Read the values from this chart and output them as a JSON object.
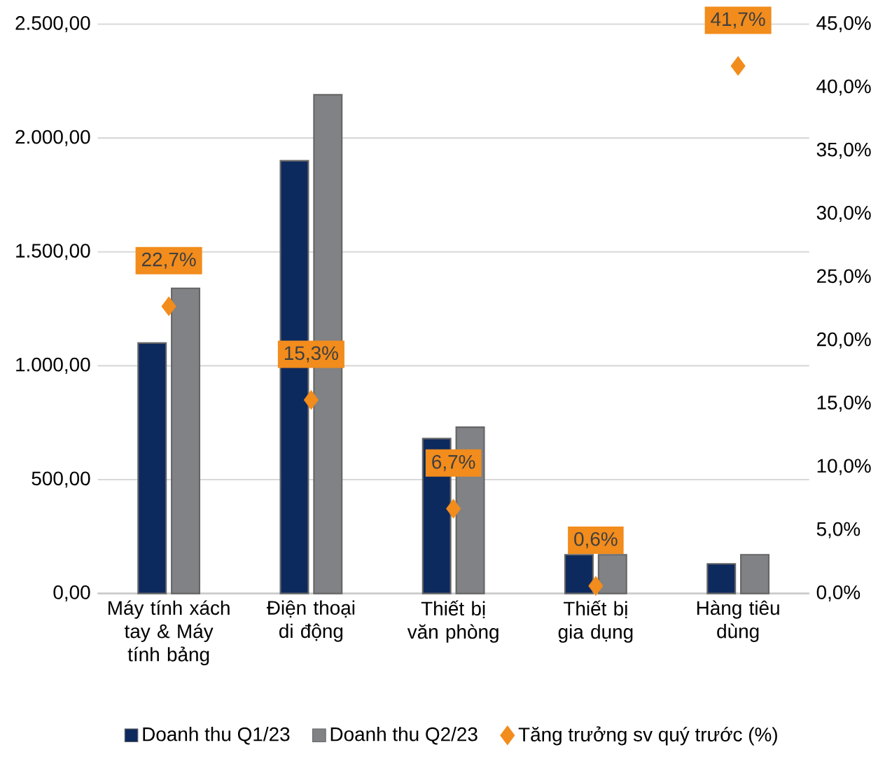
{
  "chart_data": {
    "type": "bar",
    "categories": [
      "Máy tính xách tay & Máy tính bảng",
      "Điện thoại di động",
      "Thiết bị văn phòng",
      "Thiết bị gia dụng",
      "Hàng tiêu dùng"
    ],
    "series": [
      {
        "name": "Doanh thu Q1/23",
        "color": "#0d2a5e",
        "values": [
          1100,
          1900,
          680,
          170,
          130
        ]
      },
      {
        "name": "Doanh thu Q2/23",
        "color": "#808285",
        "values": [
          1340,
          2190,
          730,
          170,
          170
        ]
      },
      {
        "name": "Tăng trưởng sv quý trước (%)",
        "type": "scatter",
        "axis": "y2",
        "marker": "diamond",
        "color": "#f28c1c",
        "values": [
          22.7,
          15.3,
          6.7,
          0.6,
          41.7
        ],
        "value_labels": [
          "22,7%",
          "15,3%",
          "6,7%",
          "0,6%",
          "41,7%"
        ]
      }
    ],
    "ylim": [
      0,
      2500
    ],
    "yticks": [
      {
        "value": 0,
        "label": "0,00"
      },
      {
        "value": 500,
        "label": "500,00"
      },
      {
        "value": 1000,
        "label": "1.000,00"
      },
      {
        "value": 1500,
        "label": "1.500,00"
      },
      {
        "value": 2000,
        "label": "2.000,00"
      },
      {
        "value": 2500,
        "label": "2.500,00"
      }
    ],
    "y2lim": [
      0,
      45
    ],
    "y2ticks": [
      {
        "value": 0,
        "label": "0,0%"
      },
      {
        "value": 5,
        "label": "5,0%"
      },
      {
        "value": 10,
        "label": "10,0%"
      },
      {
        "value": 15,
        "label": "15,0%"
      },
      {
        "value": 20,
        "label": "20,0%"
      },
      {
        "value": 25,
        "label": "25,0%"
      },
      {
        "value": 30,
        "label": "30,0%"
      },
      {
        "value": 35,
        "label": "35,0%"
      },
      {
        "value": 40,
        "label": "40,0%"
      },
      {
        "value": 45,
        "label": "45,0%"
      }
    ],
    "grid": "y",
    "legend": "bottom"
  }
}
